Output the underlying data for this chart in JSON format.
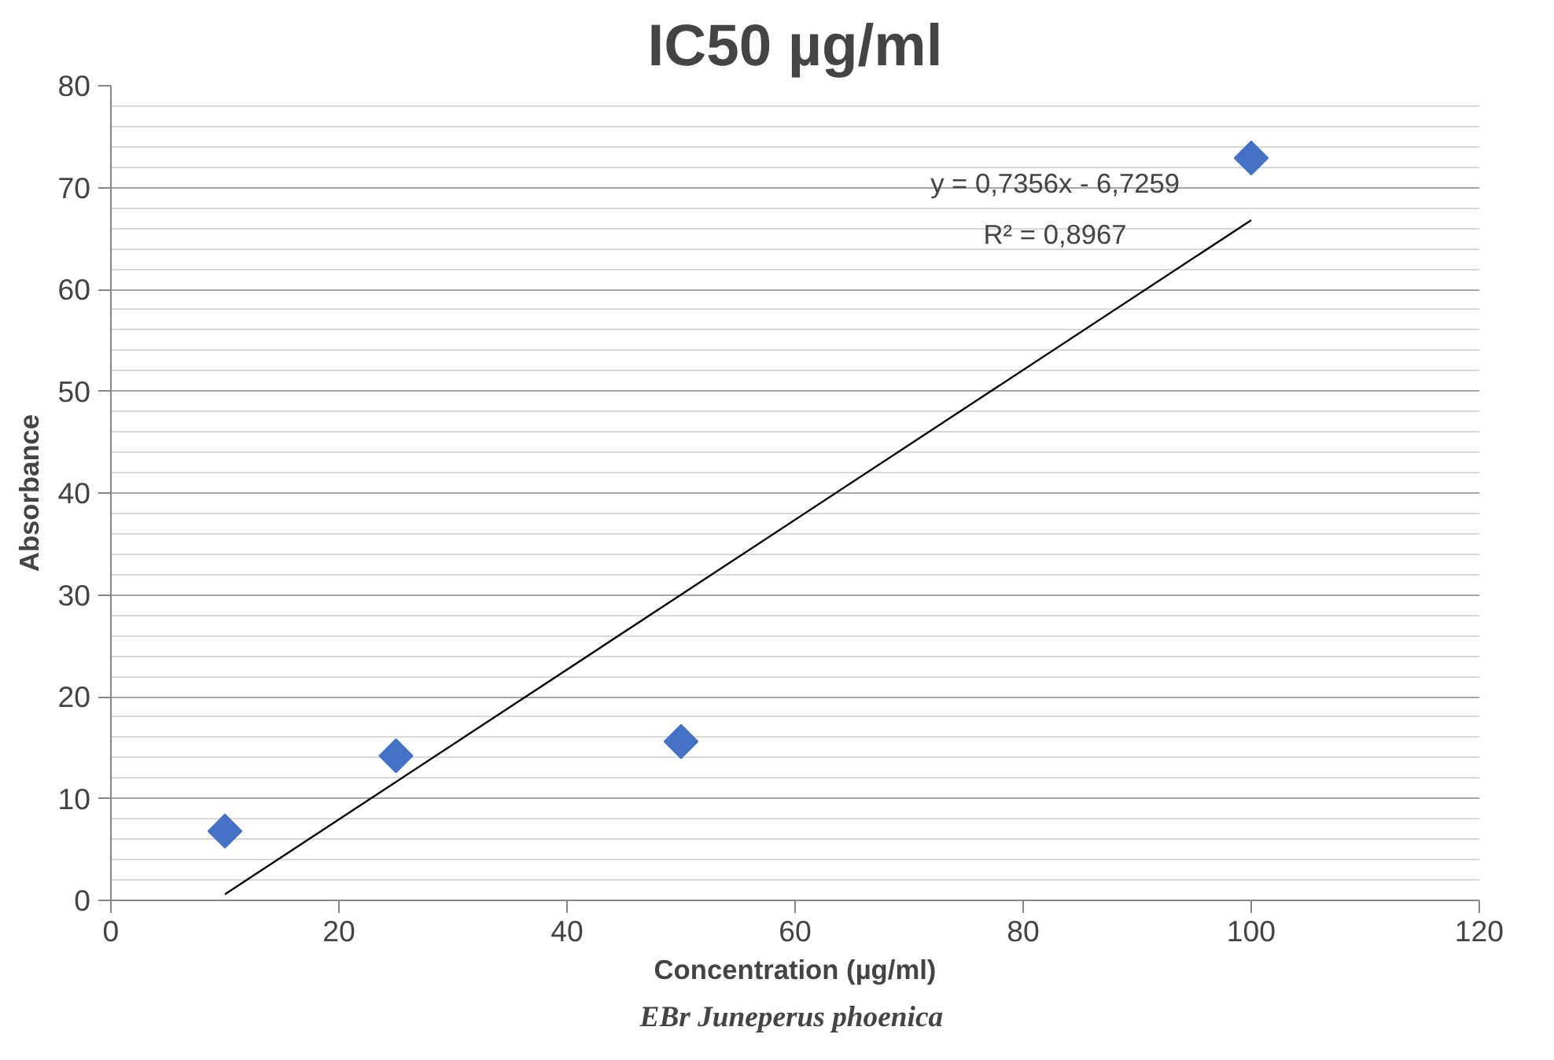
{
  "chart_data": {
    "type": "scatter",
    "title": "IC50 µg/ml",
    "xlabel": "Concentration (µg/ml)",
    "ylabel": "Absorbance",
    "series": [
      {
        "color": "#4472c4",
        "marker": "diamond",
        "x": [
          10,
          25,
          50,
          100
        ],
        "values": [
          6.8,
          14.2,
          15.6,
          72.9
        ]
      },
      {
        "type": "line",
        "color": "#000000",
        "line_style": "solid",
        "x": [
          10,
          100
        ],
        "values": [
          0.6,
          66.8
        ]
      }
    ],
    "annotations": [
      "y = 0,7356x - 6,7259",
      "R² = 0,8967",
      "EBr  Juneperus phoenica"
    ],
    "xlim": [
      0,
      120
    ],
    "xticks": [
      0,
      20,
      40,
      60,
      80,
      100,
      120
    ],
    "ylim": [
      0,
      80
    ],
    "yticks": [
      0,
      10,
      20,
      30,
      40,
      50,
      60,
      70,
      80
    ],
    "grid": "y"
  }
}
